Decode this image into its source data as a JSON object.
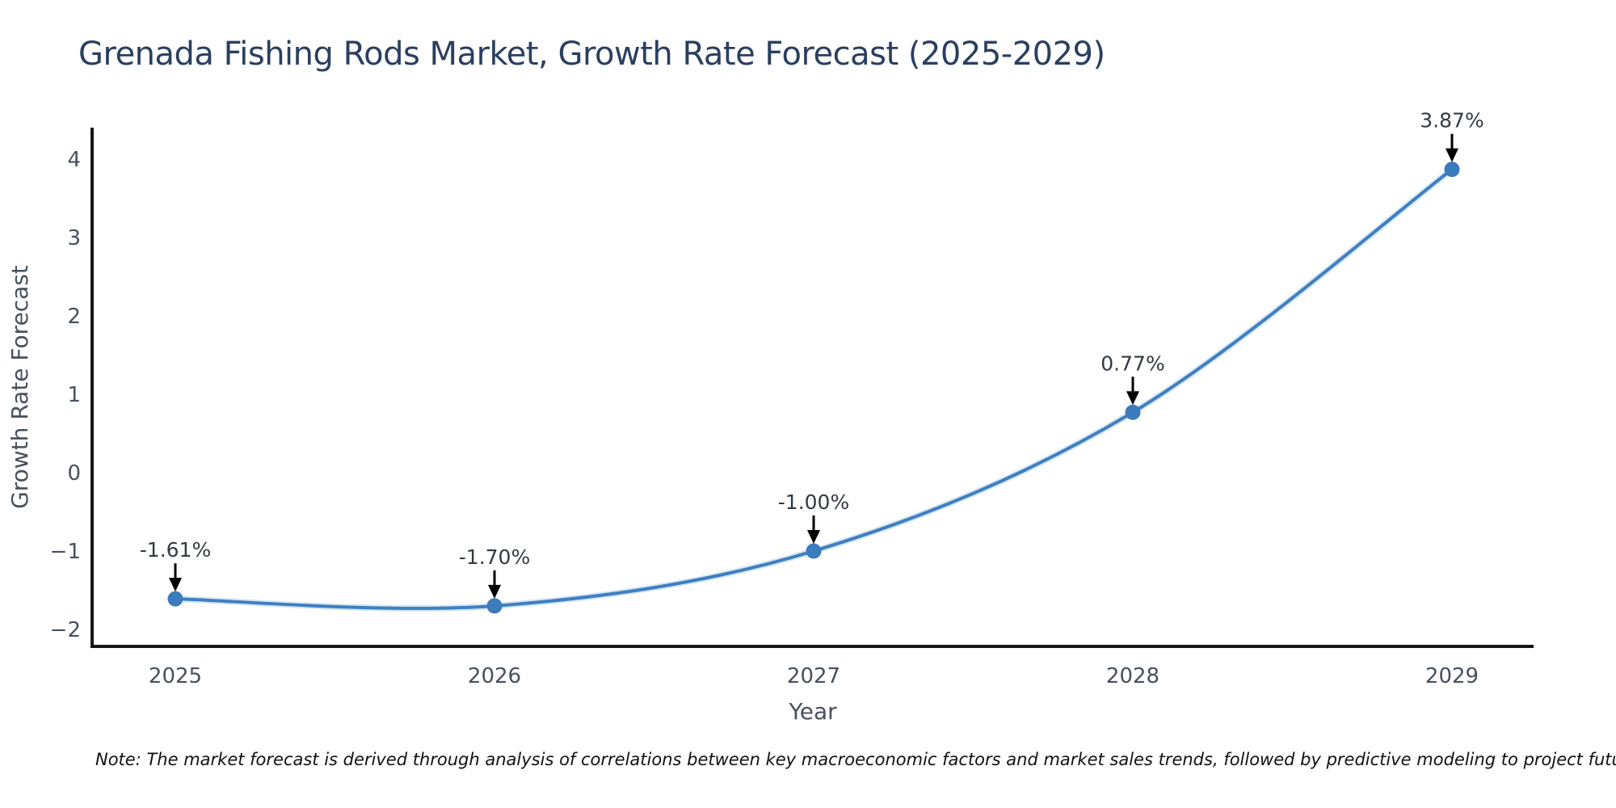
{
  "title": "Grenada Fishing Rods Market, Growth Rate Forecast (2025-2029)",
  "note": "Note: The market forecast is derived through analysis of correlations between key macroeconomic factors and market sales trends, followed by predictive modeling to project future sales",
  "chart_data": {
    "type": "line",
    "line_shape": "spline",
    "title": "Grenada Fishing Rods Market, Growth Rate Forecast (2025-2029)",
    "xlabel": "Year",
    "ylabel": "Growth Rate Forecast",
    "x": [
      2025,
      2026,
      2027,
      2028,
      2029
    ],
    "x_tick_labels": [
      "2025",
      "2026",
      "2027",
      "2028",
      "2029"
    ],
    "values": [
      -1.61,
      -1.7,
      -1.0,
      0.77,
      3.87
    ],
    "point_labels": [
      "-1.61%",
      "-1.70%",
      "-1.00%",
      "0.77%",
      "3.87%"
    ],
    "ytick_values": [
      4,
      3,
      2,
      1,
      0,
      -1,
      -2
    ],
    "ytick_labels": [
      "4",
      "3",
      "2",
      "1",
      "0",
      "−1",
      "−2"
    ],
    "ylim": [
      -2.2,
      4.4
    ],
    "grid": false,
    "legend": false,
    "annotation_arrows": true,
    "colors": {
      "line": "#3f7fc1",
      "line_halo": "#b5d3ec",
      "marker": "#3c7cbc",
      "axis_line": "#161616",
      "tick_text": "#47505e",
      "axis_title_text": "#47505e",
      "annotation_text": "#333a42",
      "arrow": "#000000",
      "title_text": "#2a3f5f",
      "note_text": "#111111",
      "background": "#ffffff"
    }
  }
}
